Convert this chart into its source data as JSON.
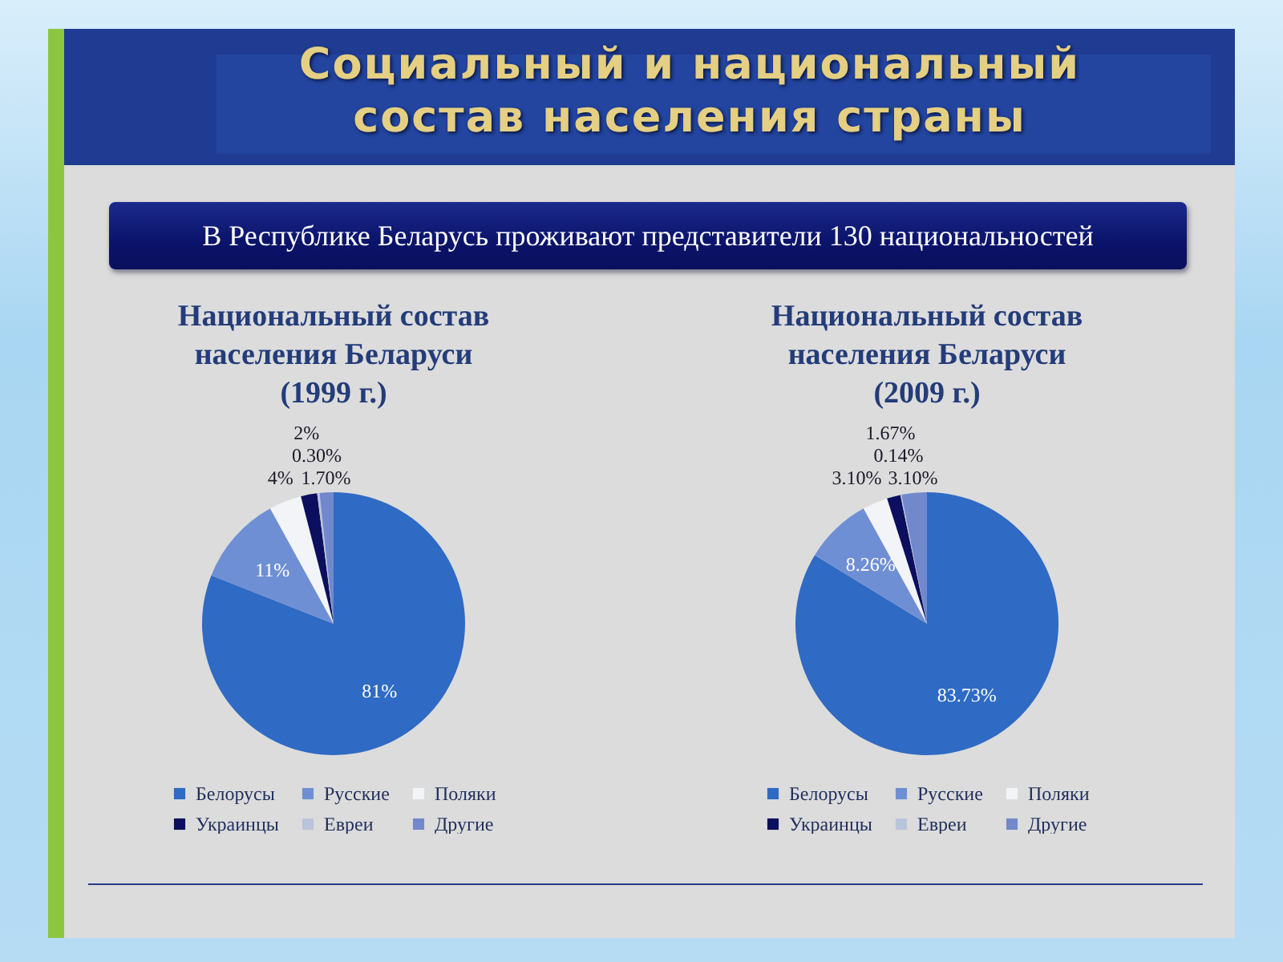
{
  "chart_data": [
    {
      "type": "other",
      "title": "Социальный и национальный\nсостав населения страны",
      "subtitle": "В Республике Беларусь проживают представители 130 национальностей"
    },
    {
      "type": "pie",
      "title": "Национальный состав\nнаселения Беларуси\n(1999 г.)",
      "categories": [
        "Белорусы",
        "Русские",
        "Поляки",
        "Украинцы",
        "Евреи",
        "Другие"
      ],
      "values": [
        81,
        11,
        4,
        2,
        0.3,
        1.7
      ],
      "value_labels": [
        "81%",
        "11%",
        "4%",
        "2%",
        "0.30%",
        "1.70%"
      ],
      "colors": [
        "#2f6ac4",
        "#6f8fd4",
        "#f2f4f8",
        "#0c0f5e",
        "#b9c3dc",
        "#7288cc"
      ],
      "legend": "bottom"
    },
    {
      "type": "pie",
      "title": "Национальный состав\nнаселения Беларуси\n(2009 г.)",
      "categories": [
        "Белорусы",
        "Русские",
        "Поляки",
        "Украинцы",
        "Евреи",
        "Другие"
      ],
      "values": [
        83.73,
        8.26,
        3.1,
        1.67,
        0.14,
        3.1
      ],
      "value_labels": [
        "83.73%",
        "8.26%",
        "3.10%",
        "1.67%",
        "0.14%",
        "3.10%"
      ],
      "colors": [
        "#2f6ac4",
        "#6f8fd4",
        "#f2f4f8",
        "#0c0f5e",
        "#b9c3dc",
        "#7288cc"
      ],
      "legend": "bottom"
    }
  ]
}
